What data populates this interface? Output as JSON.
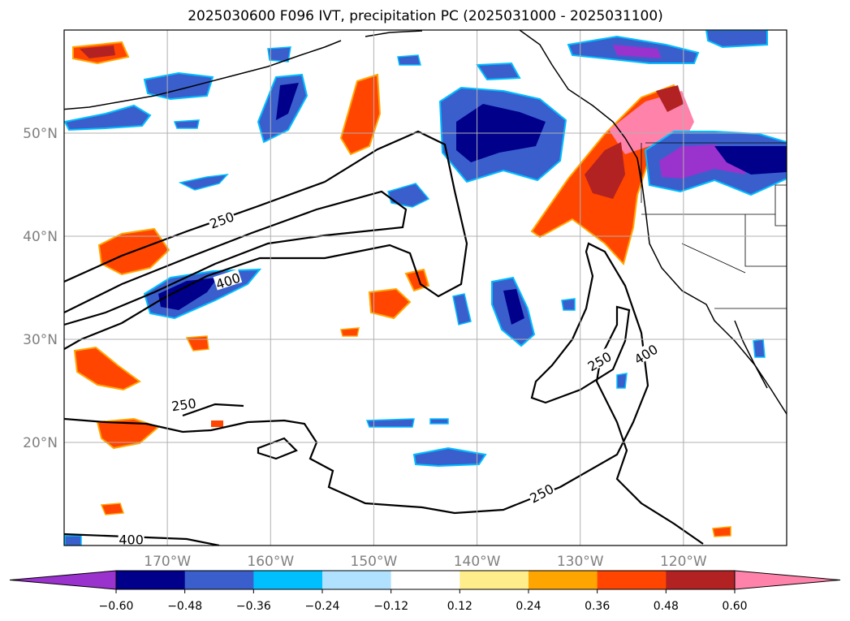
{
  "title": "2025030600 F096 IVT, precipitation PC (2025031000 - 2025031100)",
  "chart_data": {
    "type": "map",
    "projection": "lat-lon",
    "lon_range": [
      -180,
      -110
    ],
    "lat_range": [
      10,
      60
    ],
    "grid": true,
    "lon_ticks": [
      -170,
      -160,
      -150,
      -140,
      -130,
      -120
    ],
    "lon_tick_labels": [
      "170°W",
      "160°W",
      "150°W",
      "140°W",
      "130°W",
      "120°W"
    ],
    "lat_ticks": [
      20,
      30,
      40,
      50
    ],
    "lat_tick_labels": [
      "20°N",
      "30°N",
      "40°N",
      "50°N"
    ],
    "contour_levels": [
      250,
      400
    ],
    "contour_labels": [
      {
        "text": "250",
        "lon": -164.7,
        "lat": 41.5
      },
      {
        "text": "400",
        "lon": -164.1,
        "lat": 35.6
      },
      {
        "text": "250",
        "lon": -168.4,
        "lat": 23.6
      },
      {
        "text": "400",
        "lon": -173.5,
        "lat": 10.5
      },
      {
        "text": "250",
        "lon": -128.1,
        "lat": 27.8
      },
      {
        "text": "400",
        "lon": -123.6,
        "lat": 28.5
      },
      {
        "text": "250",
        "lon": -133.7,
        "lat": 15.0
      }
    ],
    "colorbar": {
      "ticks": [
        "−0.60",
        "−0.48",
        "−0.36",
        "−0.24",
        "−0.12",
        "0.12",
        "0.24",
        "0.36",
        "0.48",
        "0.60"
      ],
      "colors": [
        "#9a32cd",
        "#00008b",
        "#3a5fcd",
        "#00bfff",
        "#b0e2ff",
        "#ffffff",
        "#ffec8b",
        "#ffa500",
        "#ff4500",
        "#b22222",
        "#ff82ab"
      ],
      "extend": "both"
    }
  }
}
